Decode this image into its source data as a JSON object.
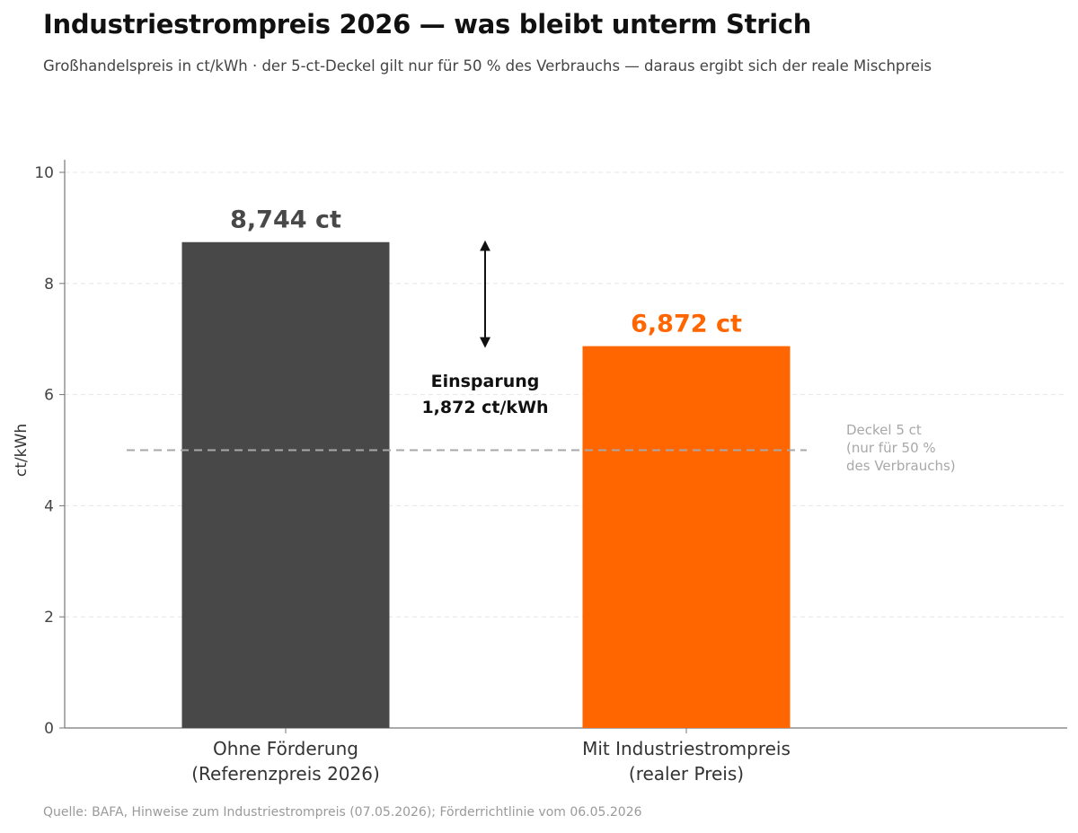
{
  "chart_data": {
    "type": "bar",
    "title": "Industriestrompreis 2026 — was bleibt unterm Strich",
    "subtitle": "Großhandelspreis in ct/kWh  ·  der 5-ct-Deckel gilt nur für 50 % des Verbrauchs — daraus ergibt sich der reale Mischpreis",
    "ylabel": "ct/kWh",
    "xlabel": "",
    "ylim": [
      0,
      10
    ],
    "yticks": [
      0,
      2,
      4,
      6,
      8,
      10
    ],
    "grid": true,
    "categories": [
      [
        "Ohne Förderung",
        "(Referenzpreis 2026)"
      ],
      [
        "Mit Industriestrompreis",
        "(realer Preis)"
      ]
    ],
    "values": [
      8.744,
      6.872
    ],
    "value_labels": [
      "8,744 ct",
      "6,872 ct"
    ],
    "colors": [
      "#484848",
      "#ff6600"
    ],
    "reference_line": {
      "value": 5,
      "label": [
        "Deckel 5 ct",
        "(nur für 50 %",
        "des Verbrauchs)"
      ],
      "color": "#a8a8a8"
    },
    "annotation": {
      "from": 8.744,
      "to": 6.872,
      "label": [
        "Einsparung",
        "1,872 ct/kWh"
      ]
    },
    "source": "Quelle: BAFA, Hinweise zum Industriestrompreis (07.05.2026); Förderrichtlinie vom 06.05.2026"
  }
}
